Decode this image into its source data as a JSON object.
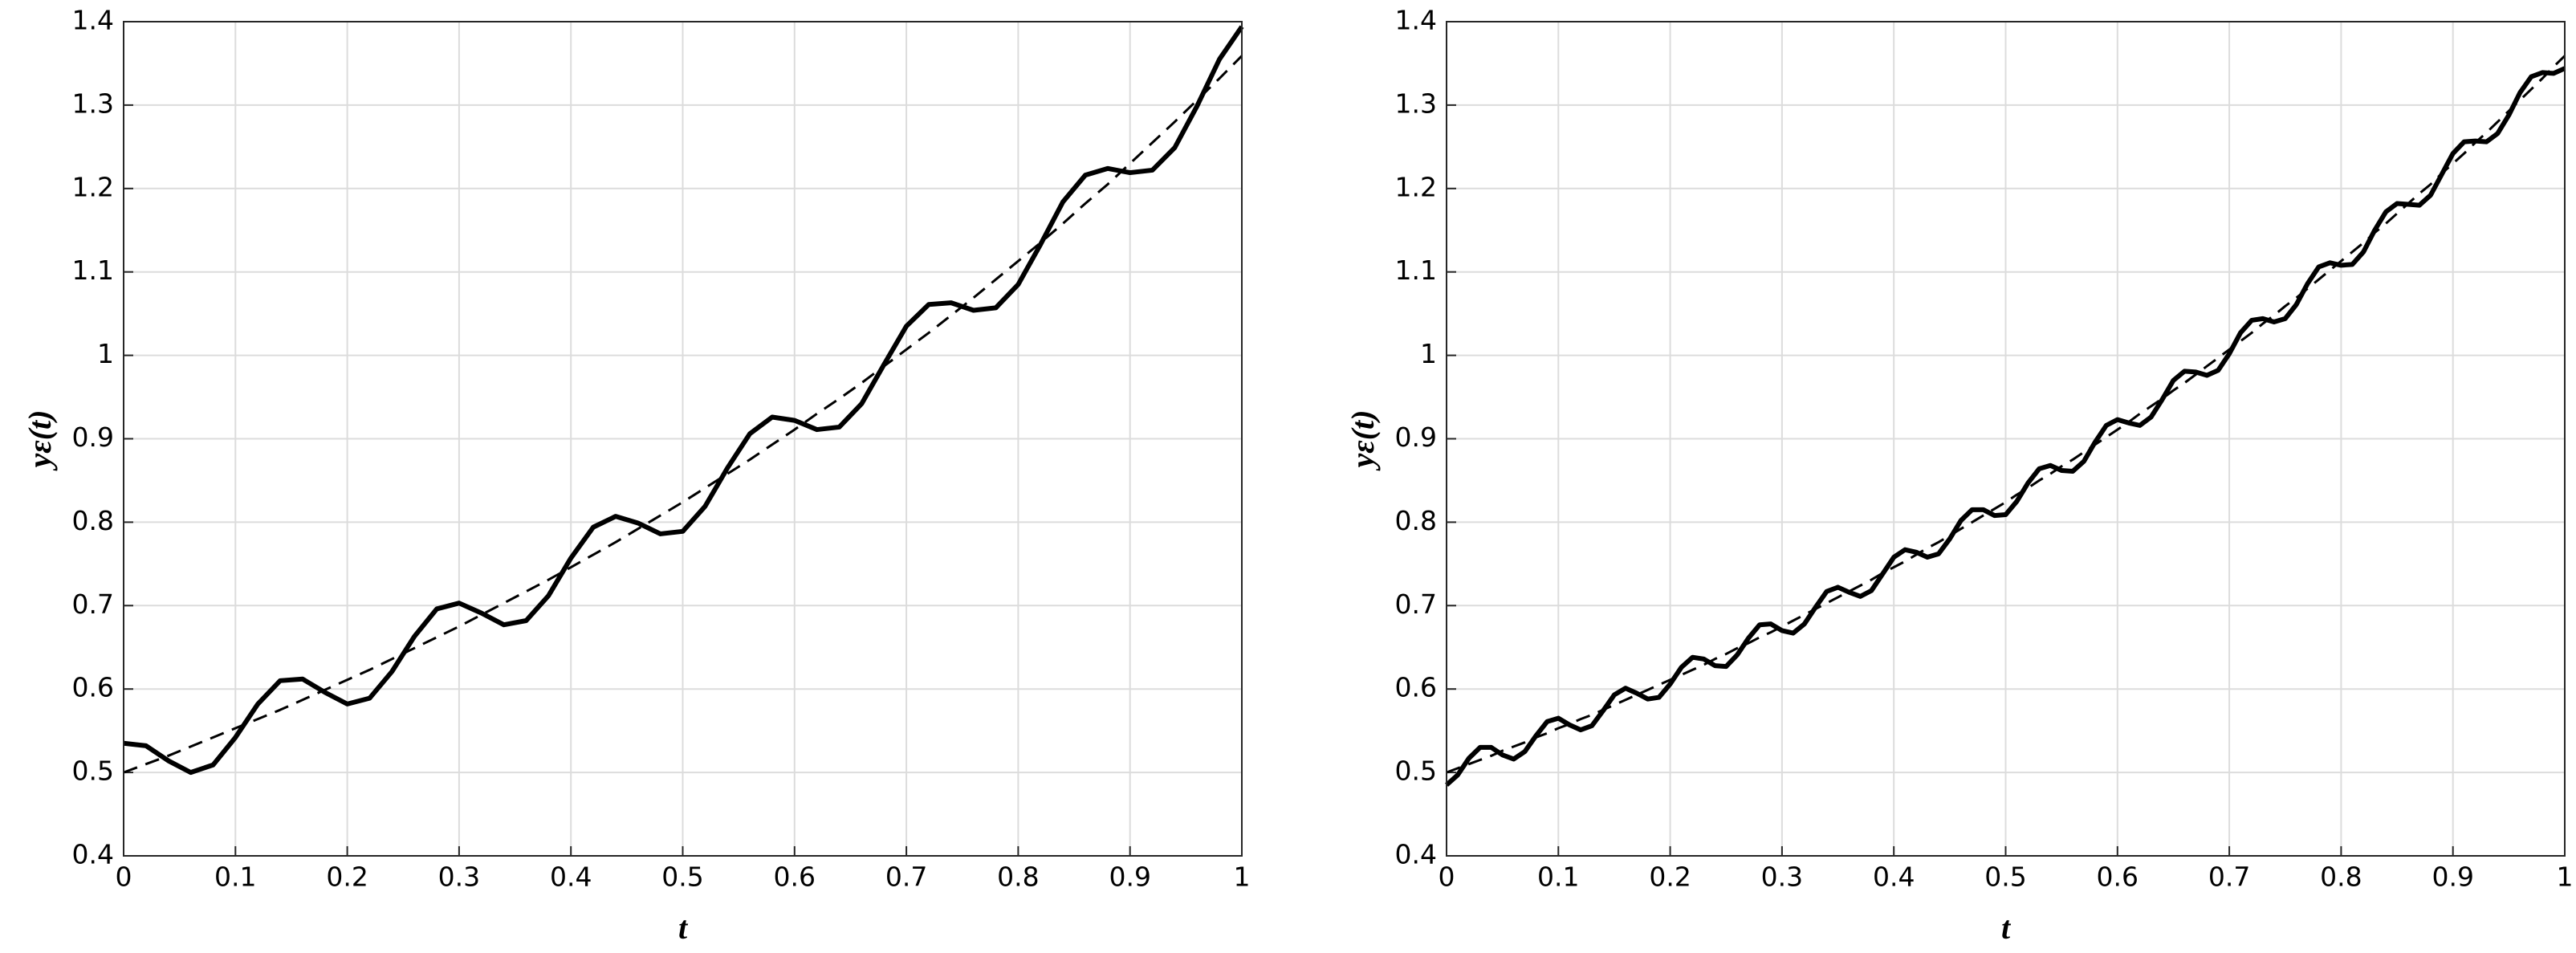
{
  "chart_data": [
    {
      "type": "line",
      "xlabel": "t",
      "ylabel": "yε(t)",
      "xlim": [
        0,
        1
      ],
      "ylim": [
        0.4,
        1.4
      ],
      "xticks": [
        0,
        0.1,
        0.2,
        0.3,
        0.4,
        0.5,
        0.6,
        0.7,
        0.8,
        0.9,
        1
      ],
      "yticks": [
        0.4,
        0.5,
        0.6,
        0.7,
        0.8,
        0.9,
        1,
        1.1,
        1.2,
        1.3,
        1.4
      ],
      "grid": true,
      "x": [
        0,
        0.02,
        0.04,
        0.06,
        0.08,
        0.1,
        0.12,
        0.14,
        0.16,
        0.18,
        0.2,
        0.22,
        0.24,
        0.26,
        0.28,
        0.3,
        0.32,
        0.34,
        0.36,
        0.38,
        0.4,
        0.42,
        0.44,
        0.46,
        0.48,
        0.5,
        0.52,
        0.54,
        0.56,
        0.58,
        0.6,
        0.62,
        0.64,
        0.66,
        0.68,
        0.7,
        0.72,
        0.74,
        0.76,
        0.78,
        0.8,
        0.82,
        0.84,
        0.86,
        0.88,
        0.9,
        0.92,
        0.94,
        0.96,
        0.98,
        1
      ],
      "series": [
        {
          "color": "#000000",
          "style": "solid",
          "values": [
            0.535,
            0.532,
            0.514,
            0.5,
            0.509,
            0.542,
            0.582,
            0.61,
            0.612,
            0.596,
            0.582,
            0.589,
            0.621,
            0.663,
            0.696,
            0.703,
            0.691,
            0.677,
            0.682,
            0.712,
            0.757,
            0.794,
            0.807,
            0.799,
            0.786,
            0.789,
            0.819,
            0.865,
            0.906,
            0.926,
            0.922,
            0.911,
            0.914,
            0.942,
            0.989,
            1.035,
            1.061,
            1.063,
            1.054,
            1.057,
            1.085,
            1.133,
            1.184,
            1.216,
            1.224,
            1.219,
            1.222,
            1.249,
            1.299,
            1.355,
            1.394
          ]
        },
        {
          "color": "#000000",
          "style": "dashed",
          "values": [
            0.5,
            0.51,
            0.52,
            0.531,
            0.542,
            0.553,
            0.564,
            0.575,
            0.587,
            0.599,
            0.611,
            0.623,
            0.636,
            0.649,
            0.662,
            0.675,
            0.689,
            0.703,
            0.717,
            0.731,
            0.746,
            0.761,
            0.776,
            0.792,
            0.808,
            0.824,
            0.841,
            0.858,
            0.875,
            0.893,
            0.911,
            0.93,
            0.948,
            0.967,
            0.987,
            1.007,
            1.027,
            1.048,
            1.069,
            1.091,
            1.113,
            1.135,
            1.158,
            1.182,
            1.205,
            1.23,
            1.255,
            1.28,
            1.306,
            1.332,
            1.359
          ]
        }
      ]
    },
    {
      "type": "line",
      "xlabel": "t",
      "ylabel": "yε(t)",
      "xlim": [
        0,
        1
      ],
      "ylim": [
        0.4,
        1.4
      ],
      "xticks": [
        0,
        0.1,
        0.2,
        0.3,
        0.4,
        0.5,
        0.6,
        0.7,
        0.8,
        0.9,
        1
      ],
      "yticks": [
        0.4,
        0.5,
        0.6,
        0.7,
        0.8,
        0.9,
        1,
        1.1,
        1.2,
        1.3,
        1.4
      ],
      "grid": true,
      "x": [
        0,
        0.01,
        0.02,
        0.03,
        0.04,
        0.05,
        0.06,
        0.07,
        0.08,
        0.09,
        0.1,
        0.11,
        0.12,
        0.13,
        0.14,
        0.15,
        0.16,
        0.17,
        0.18,
        0.19,
        0.2,
        0.21,
        0.22,
        0.23,
        0.24,
        0.25,
        0.26,
        0.27,
        0.28,
        0.29,
        0.3,
        0.31,
        0.32,
        0.33,
        0.34,
        0.35,
        0.36,
        0.37,
        0.38,
        0.39,
        0.4,
        0.41,
        0.42,
        0.43,
        0.44,
        0.45,
        0.46,
        0.47,
        0.48,
        0.49,
        0.5,
        0.51,
        0.52,
        0.53,
        0.54,
        0.55,
        0.56,
        0.57,
        0.58,
        0.59,
        0.6,
        0.61,
        0.62,
        0.63,
        0.64,
        0.65,
        0.66,
        0.67,
        0.68,
        0.69,
        0.7,
        0.71,
        0.72,
        0.73,
        0.74,
        0.75,
        0.76,
        0.77,
        0.78,
        0.79,
        0.8,
        0.81,
        0.82,
        0.83,
        0.84,
        0.85,
        0.86,
        0.87,
        0.88,
        0.89,
        0.9,
        0.91,
        0.92,
        0.93,
        0.94,
        0.95,
        0.96,
        0.97,
        0.98,
        0.99,
        1
      ],
      "series": [
        {
          "color": "#000000",
          "style": "solid",
          "values": [
            0.485,
            0.497,
            0.517,
            0.53,
            0.53,
            0.521,
            0.516,
            0.525,
            0.544,
            0.561,
            0.565,
            0.557,
            0.551,
            0.556,
            0.574,
            0.593,
            0.601,
            0.595,
            0.588,
            0.59,
            0.606,
            0.626,
            0.638,
            0.636,
            0.628,
            0.627,
            0.641,
            0.661,
            0.677,
            0.678,
            0.67,
            0.667,
            0.678,
            0.698,
            0.717,
            0.722,
            0.716,
            0.711,
            0.718,
            0.738,
            0.758,
            0.767,
            0.764,
            0.758,
            0.762,
            0.78,
            0.802,
            0.815,
            0.815,
            0.808,
            0.809,
            0.825,
            0.847,
            0.864,
            0.868,
            0.862,
            0.861,
            0.873,
            0.896,
            0.916,
            0.923,
            0.919,
            0.916,
            0.926,
            0.947,
            0.97,
            0.981,
            0.98,
            0.976,
            0.982,
            1.002,
            1.027,
            1.042,
            1.044,
            1.04,
            1.044,
            1.061,
            1.086,
            1.106,
            1.111,
            1.108,
            1.109,
            1.124,
            1.15,
            1.172,
            1.182,
            1.181,
            1.18,
            1.192,
            1.217,
            1.242,
            1.256,
            1.257,
            1.256,
            1.266,
            1.288,
            1.315,
            1.334,
            1.339,
            1.338,
            1.344
          ]
        },
        {
          "color": "#000000",
          "style": "dashed",
          "values": [
            0.5,
            0.505,
            0.51,
            0.515,
            0.52,
            0.526,
            0.531,
            0.536,
            0.542,
            0.547,
            0.553,
            0.558,
            0.564,
            0.569,
            0.575,
            0.581,
            0.587,
            0.593,
            0.599,
            0.605,
            0.611,
            0.617,
            0.623,
            0.629,
            0.636,
            0.642,
            0.649,
            0.655,
            0.662,
            0.668,
            0.675,
            0.682,
            0.689,
            0.696,
            0.703,
            0.71,
            0.717,
            0.724,
            0.731,
            0.739,
            0.746,
            0.753,
            0.761,
            0.769,
            0.776,
            0.784,
            0.792,
            0.8,
            0.808,
            0.816,
            0.824,
            0.833,
            0.841,
            0.85,
            0.858,
            0.867,
            0.875,
            0.884,
            0.893,
            0.902,
            0.911,
            0.92,
            0.93,
            0.939,
            0.948,
            0.958,
            0.967,
            0.977,
            0.987,
            0.997,
            1.007,
            1.017,
            1.027,
            1.038,
            1.048,
            1.059,
            1.069,
            1.08,
            1.091,
            1.102,
            1.113,
            1.124,
            1.135,
            1.147,
            1.158,
            1.17,
            1.182,
            1.194,
            1.205,
            1.218,
            1.23,
            1.242,
            1.255,
            1.267,
            1.28,
            1.293,
            1.306,
            1.319,
            1.332,
            1.346,
            1.359
          ]
        }
      ]
    }
  ]
}
